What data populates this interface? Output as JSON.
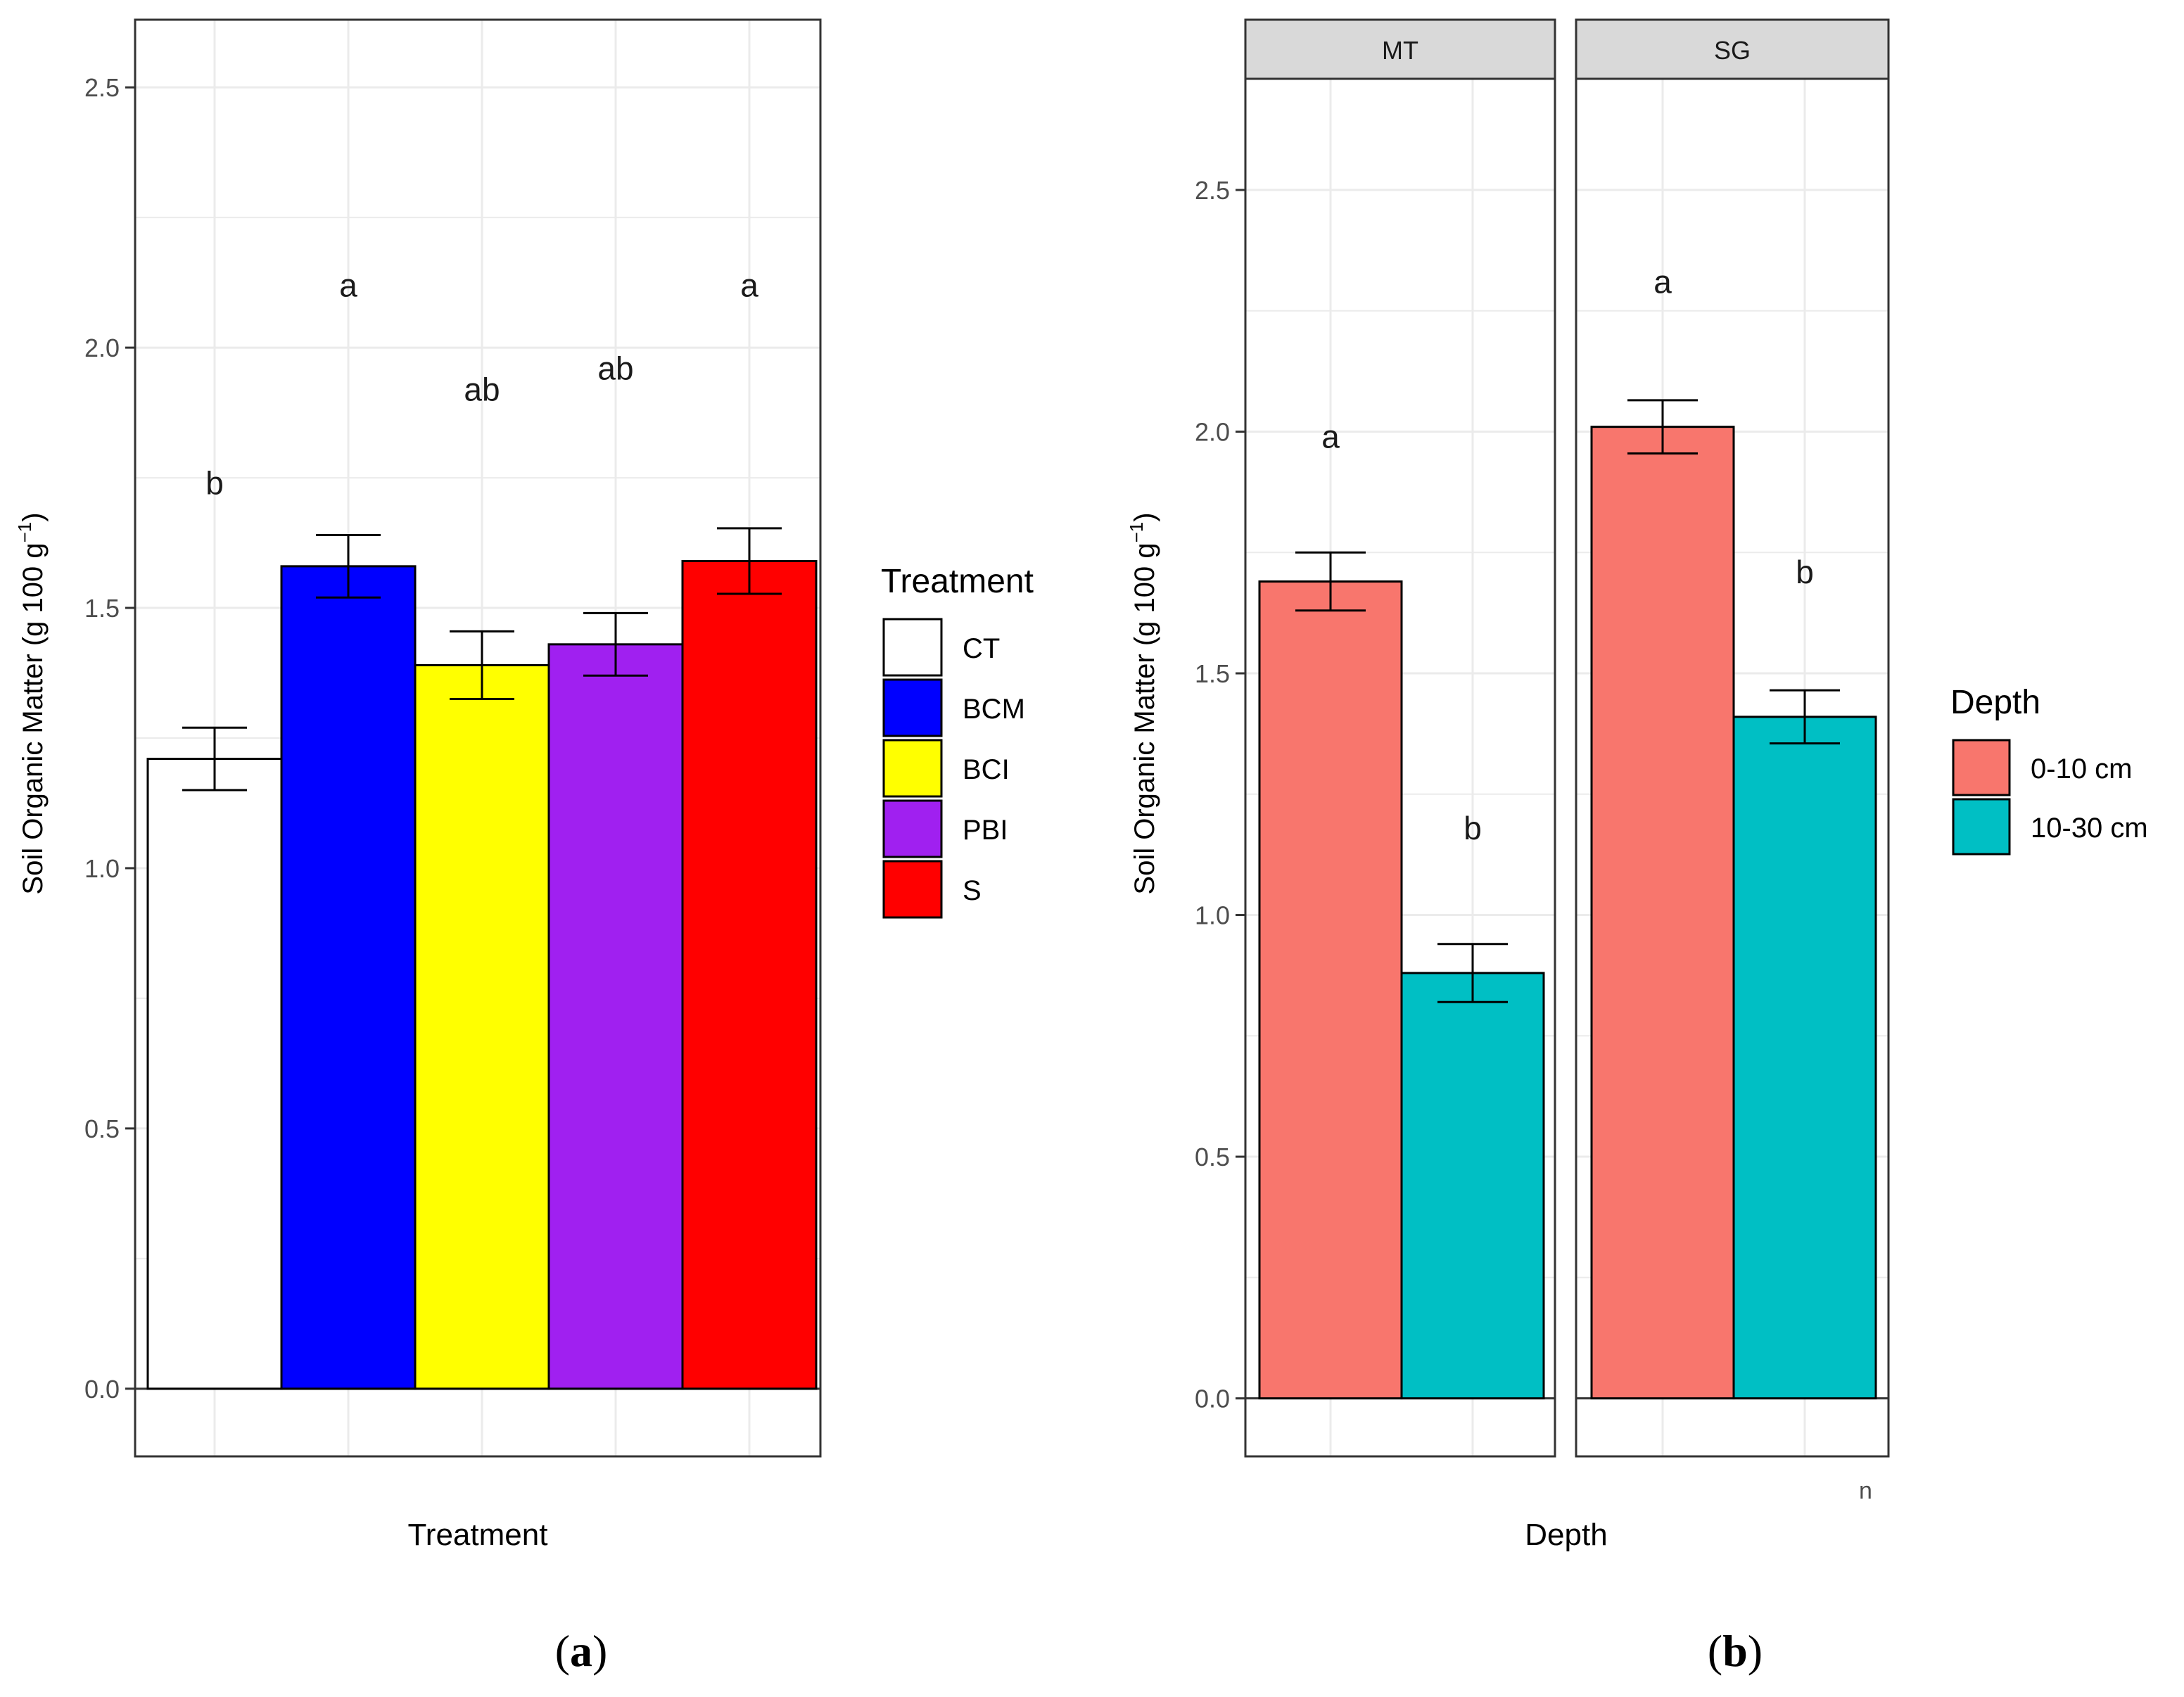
{
  "chart_data": [
    {
      "panel": "(a)",
      "panel_letter": "a",
      "type": "bar",
      "xlabel": "Treatment",
      "ylabel": "Soil Organic Matter (g 100 g",
      "ylabel_sup": "−1",
      "ylabel_close": ")",
      "ylim": [
        -0.13,
        2.63
      ],
      "yticks": [
        "0.0",
        "0.5",
        "1.0",
        "1.5",
        "2.0",
        "2.5"
      ],
      "categories": [
        "CT",
        "BCM",
        "BCI",
        "PBI",
        "S"
      ],
      "values": [
        1.21,
        1.58,
        1.39,
        1.43,
        1.59
      ],
      "errors": [
        0.06,
        0.06,
        0.065,
        0.06,
        0.063
      ],
      "significance": [
        "b",
        "a",
        "ab",
        "ab",
        "a"
      ],
      "significance_y": [
        1.74,
        2.12,
        1.92,
        1.96,
        2.12
      ],
      "colors": [
        "#ffffff",
        "#0000ff",
        "#ffff00",
        "#a020f0",
        "#ff0000"
      ],
      "legend": {
        "title": "Treatment",
        "entries": [
          "CT",
          "BCM",
          "BCI",
          "PBI",
          "S"
        ]
      },
      "grid": true
    },
    {
      "panel": "(b)",
      "panel_letter": "b",
      "type": "bar",
      "xlabel": "Depth",
      "ylabel": "Soil Organic Matter (g 100 g",
      "ylabel_sup": "−1",
      "ylabel_close": ")",
      "ylim": [
        -0.12,
        2.73
      ],
      "yticks": [
        "0.0",
        "0.5",
        "1.0",
        "1.5",
        "2.0",
        "2.5"
      ],
      "facets": [
        {
          "label": "MT",
          "categories": [
            "0-10 cm",
            "10-30 cm"
          ],
          "values": [
            1.69,
            0.88
          ],
          "errors": [
            0.06,
            0.06
          ],
          "significance": [
            "a",
            "b"
          ],
          "significance_y": [
            1.99,
            1.18
          ]
        },
        {
          "label": "SG",
          "categories": [
            "0-10 cm",
            "10-30 cm"
          ],
          "values": [
            2.01,
            1.41
          ],
          "errors": [
            0.055,
            0.055
          ],
          "significance": [
            "a",
            "b"
          ],
          "significance_y": [
            2.31,
            1.71
          ]
        }
      ],
      "colors": [
        "#f8766d",
        "#00bfc4"
      ],
      "legend": {
        "title": "Depth",
        "entries": [
          "0-10 cm",
          "10-30 cm"
        ]
      },
      "grid": true
    }
  ],
  "stray_glyph": "n",
  "palette": {
    "panel_border": "#333333",
    "grid": "#ebebeb",
    "strip_fill": "#d9d9d9",
    "bar_outline": "#000000"
  }
}
